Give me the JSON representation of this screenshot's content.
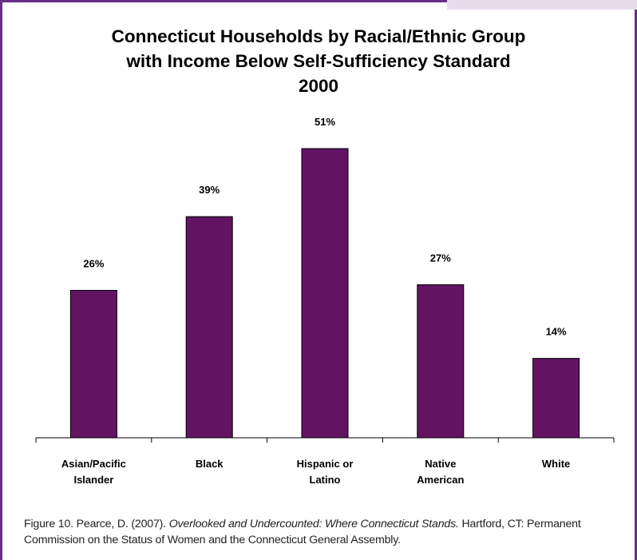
{
  "chart_data": {
    "type": "bar",
    "title_lines": [
      "Connecticut Households by Racial/Ethnic Group",
      "with Income Below Self-Sufficiency Standard",
      "2000"
    ],
    "categories": [
      [
        "Asian/Pacific",
        "Islander"
      ],
      [
        "Black"
      ],
      [
        "Hispanic or",
        "Latino"
      ],
      [
        "Native",
        "American"
      ],
      [
        "White"
      ]
    ],
    "values": [
      26,
      39,
      51,
      27,
      14
    ],
    "data_labels": [
      "26%",
      "39%",
      "51%",
      "27%",
      "14%"
    ],
    "unit": "%",
    "ylim": [
      0,
      51
    ],
    "bar_color": "#621462",
    "grid": false,
    "legend": "none"
  },
  "caption": {
    "prefix": "Figure 10. Pearce, D. (2007). ",
    "title_italic": "Overlooked and Undercounted: Where Connecticut Stands.",
    "suffix": " Hartford, CT: Permanent Commission on the Status of Women and the Connecticut General Assembly."
  }
}
